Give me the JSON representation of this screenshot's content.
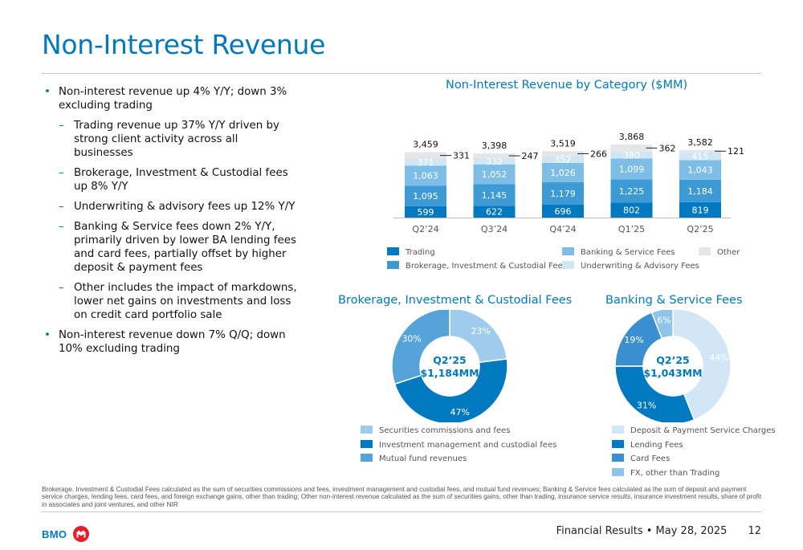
{
  "page": {
    "title": "Non-Interest Revenue",
    "footnote": "Brokerage, Investment & Custodial Fees calculated as the sum of securities commissions and fees, investment management and custodial fees, and mutual fund revenues; Banking & Service fees calculated as the sum of deposit and payment service charges, lending fees, card fees, and foreign exchange gains, other than trading; Other non-interest revenue calculated as the sum of securities gains, other than trading, insurance service results, insurance investment results, share of profit in associates and joint ventures, and other NIR",
    "logo_text": "BMO",
    "footer_text": "Financial Results • May 28, 2025",
    "page_number": "12"
  },
  "bullets": [
    {
      "level": 1,
      "text": "Non-interest revenue up 4% Y/Y; down 3% excluding trading"
    },
    {
      "level": 2,
      "text": "Trading revenue up 37% Y/Y driven by strong client activity across all businesses"
    },
    {
      "level": 2,
      "text": "Brokerage, Investment & Custodial fees up 8% Y/Y"
    },
    {
      "level": 2,
      "text": "Underwriting & advisory fees up 12% Y/Y"
    },
    {
      "level": 2,
      "text": "Banking & Service fees down 2% Y/Y, primarily driven by lower BA lending fees and card fees, partially offset by higher deposit & payment fees"
    },
    {
      "level": 2,
      "text": "Other includes the impact of markdowns, lower net gains on investments and loss on credit card portfolio sale"
    },
    {
      "level": 1,
      "text": "Non-interest revenue down 7% Q/Q; down 10% excluding trading"
    }
  ],
  "chart_data": [
    {
      "type": "bar",
      "stacked": true,
      "title": "Non-Interest Revenue by Category ($MM)",
      "categories": [
        "Q2’24",
        "Q3’24",
        "Q4’24",
        "Q1’25",
        "Q2’25"
      ],
      "series": [
        {
          "name": "Trading",
          "color": "#0079c1",
          "text_color": "#ffffff",
          "values": [
            599,
            622,
            696,
            802,
            819
          ]
        },
        {
          "name": "Brokerage, Investment & Custodial Fees",
          "color": "#3e9ad4",
          "text_color": "#ffffff",
          "values": [
            1095,
            1145,
            1179,
            1225,
            1184
          ]
        },
        {
          "name": "Banking & Service Fees",
          "color": "#7dbde6",
          "text_color": "#ffffff",
          "values": [
            1063,
            1052,
            1026,
            1099,
            1043
          ]
        },
        {
          "name": "Underwriting & Advisory Fees",
          "color": "#cfe6f6",
          "text_color": "#ffffff",
          "values": [
            371,
            332,
            352,
            380,
            415
          ]
        },
        {
          "name": "Other",
          "color": "#e6e6e6",
          "values": [
            331,
            247,
            266,
            362,
            121
          ]
        }
      ],
      "totals": [
        "3,459",
        "3,398",
        "3,519",
        "3,868",
        "3,582"
      ],
      "data_labels": [
        [
          "599",
          "622",
          "696",
          "802",
          "819"
        ],
        [
          "1,095",
          "1,145",
          "1,179",
          "1,225",
          "1,184"
        ],
        [
          "1,063",
          "1,052",
          "1,026",
          "1,099",
          "1,043"
        ],
        [
          "371",
          "332",
          "352",
          "380",
          "415"
        ],
        [
          "331",
          "247",
          "266",
          "362",
          "121"
        ]
      ],
      "legend_position": "bottom"
    },
    {
      "type": "pie",
      "donut": true,
      "title": "Brokerage, Investment & Custodial Fees",
      "center_label": [
        "Q2’25",
        "$1,184MM"
      ],
      "slices": [
        {
          "name": "Securities commissions and fees",
          "value": 23,
          "label": "23%",
          "color": "#9fcbec"
        },
        {
          "name": "Investment management and custodial fees",
          "value": 47,
          "label": "47%",
          "color": "#0079c1"
        },
        {
          "name": "Mutual fund revenues",
          "value": 30,
          "label": "30%",
          "color": "#56a3da"
        }
      ],
      "legend_position": "bottom"
    },
    {
      "type": "pie",
      "donut": true,
      "title": "Banking & Service Fees",
      "center_label": [
        "Q2’25",
        "$1,043MM"
      ],
      "slices": [
        {
          "name": "Deposit & Payment Service Charges",
          "value": 44,
          "label": "44%",
          "color": "#d2e6f6"
        },
        {
          "name": "Lending Fees",
          "value": 31,
          "label": "31%",
          "color": "#0079c1"
        },
        {
          "name": "Card Fees",
          "value": 19,
          "label": "19%",
          "color": "#3b8fd0"
        },
        {
          "name": "FX, other than Trading",
          "value": 6,
          "label": "6%",
          "color": "#8ec3ea"
        }
      ],
      "legend_position": "bottom"
    }
  ]
}
